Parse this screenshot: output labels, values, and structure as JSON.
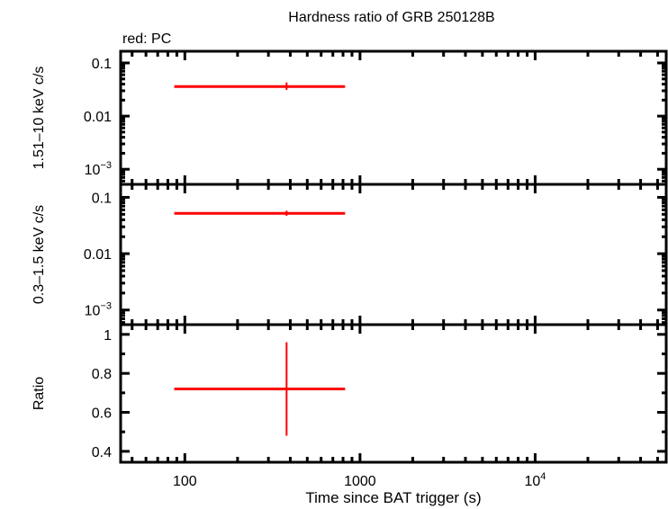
{
  "chart_data": {
    "type": "scatter",
    "title": "Hardness ratio of GRB 250128B",
    "legend_note": "red: PC",
    "xlabel": "Time since BAT trigger (s)",
    "x_scale": "log",
    "xlim": [
      43,
      56000
    ],
    "x_ticks": [
      {
        "v": 100,
        "label": "100"
      },
      {
        "v": 1000,
        "label": "1000"
      },
      {
        "v": 10000,
        "label": "10",
        "sup": "4"
      }
    ],
    "color": "#ff0000",
    "panels": [
      {
        "name": "hard-band",
        "ylabel": "1.51–10 keV c/s",
        "y_scale": "log",
        "ylim": [
          0.00052,
          0.166
        ],
        "y_ticks": [
          {
            "v": 0.1,
            "label": "0.1"
          },
          {
            "v": 0.01,
            "label": "0.01"
          },
          {
            "v": 0.001,
            "label": "10",
            "sup": "−3"
          }
        ],
        "points": [
          {
            "x": 381,
            "xlo": 87,
            "xhi": 822,
            "y": 0.036,
            "ylo": 0.031,
            "yhi": 0.043
          }
        ]
      },
      {
        "name": "soft-band",
        "ylabel": "0.3–1.5 keV c/s",
        "y_scale": "log",
        "ylim": [
          0.00055,
          0.17
        ],
        "y_ticks": [
          {
            "v": 0.1,
            "label": "0.1"
          },
          {
            "v": 0.01,
            "label": "0.01"
          },
          {
            "v": 0.001,
            "label": "10",
            "sup": "−3"
          }
        ],
        "points": [
          {
            "x": 381,
            "xlo": 87,
            "xhi": 822,
            "y": 0.052,
            "ylo": 0.047,
            "yhi": 0.058
          }
        ]
      },
      {
        "name": "ratio",
        "ylabel": "Ratio",
        "y_scale": "linear",
        "ylim": [
          0.344,
          1.05
        ],
        "y_ticks": [
          {
            "v": 0.4,
            "label": "0.4"
          },
          {
            "v": 0.6,
            "label": "0.6"
          },
          {
            "v": 0.8,
            "label": "0.8"
          },
          {
            "v": 1,
            "label": "1"
          }
        ],
        "points": [
          {
            "x": 381,
            "xlo": 87,
            "xhi": 822,
            "y": 0.72,
            "ylo": 0.48,
            "yhi": 0.96
          }
        ]
      }
    ]
  }
}
